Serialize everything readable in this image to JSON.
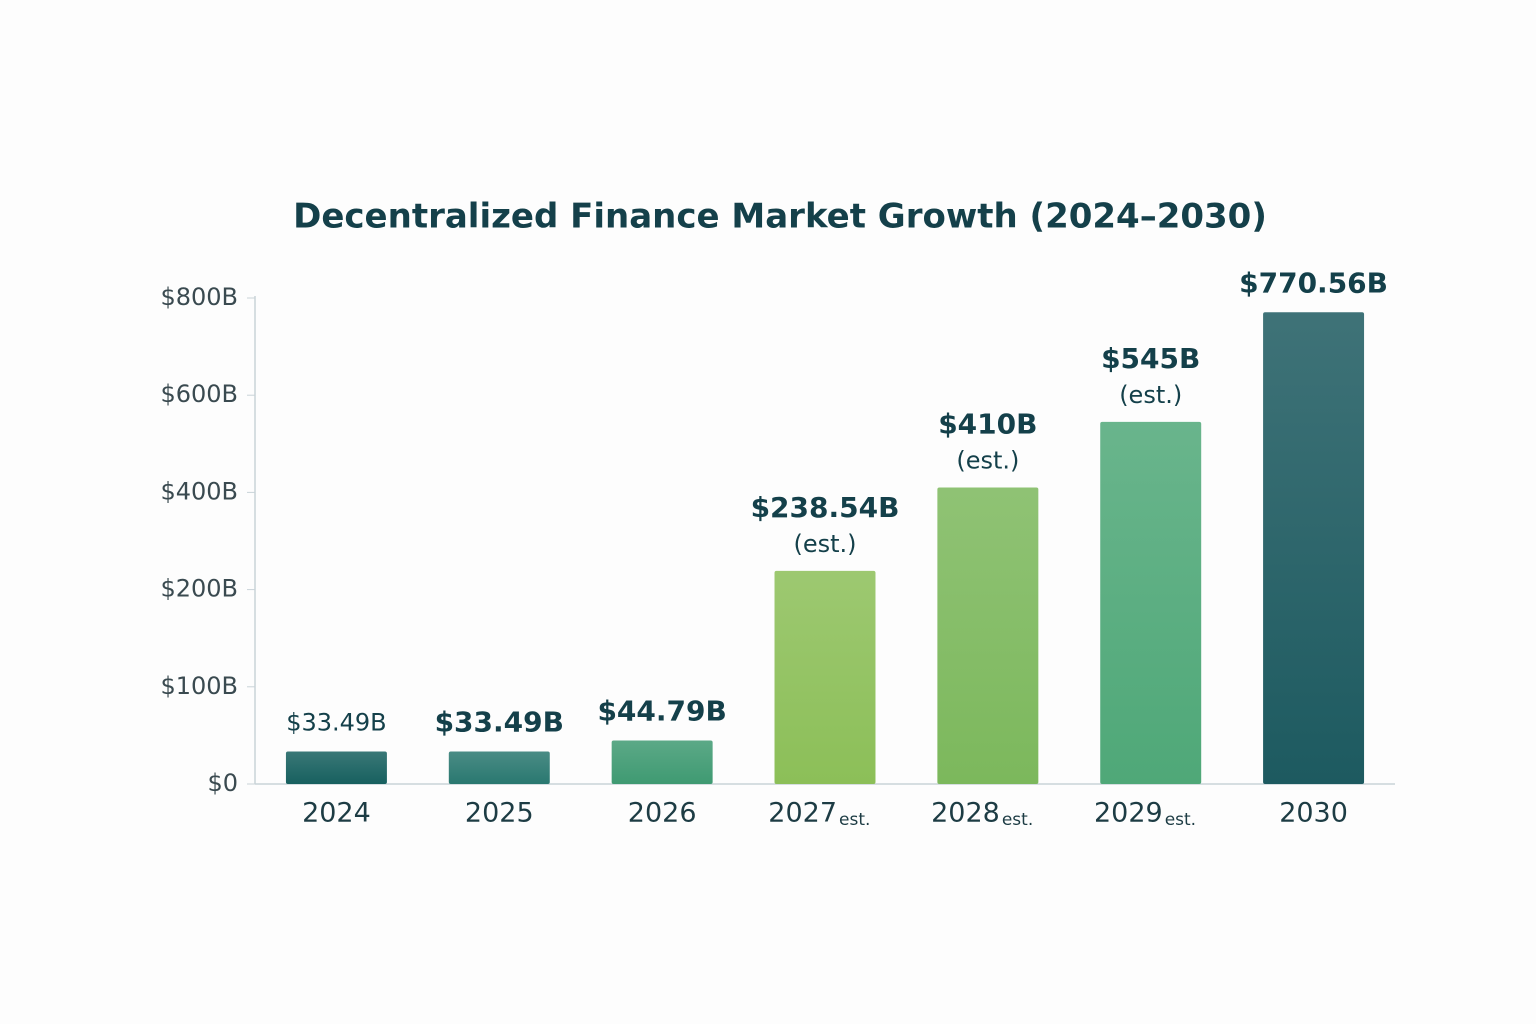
{
  "chart_data": {
    "type": "bar",
    "title": "Decentralized Finance Market Growth (2024–2030)",
    "categories": [
      "2024",
      "2025",
      "2026",
      "2027",
      "2028",
      "2029",
      "2030"
    ],
    "category_notes": [
      null,
      null,
      null,
      "est.",
      "est.",
      "est.",
      null
    ],
    "values": [
      33.49,
      33.49,
      44.79,
      238.54,
      410,
      545,
      770.56
    ],
    "value_labels": [
      "$33.49B",
      "$33.49B",
      "$44.79B",
      "$238.54B",
      "$410B",
      "$545B",
      "$770.56B"
    ],
    "value_notes": [
      null,
      null,
      null,
      "(est.)",
      "(est.)",
      "(est.)",
      null
    ],
    "colors": [
      "#17605f",
      "#2a7870",
      "#3f9a72",
      "#8cbf58",
      "#7cb85c",
      "#4fa878",
      "#1d5a60"
    ],
    "ylim": [
      0,
      800
    ],
    "yticks": [
      {
        "value": 0,
        "label": "$0"
      },
      {
        "value": 100,
        "label": "$100B"
      },
      {
        "value": 200,
        "label": "$200B"
      },
      {
        "value": 400,
        "label": "$400B"
      },
      {
        "value": 600,
        "label": "$600B"
      },
      {
        "value": 800,
        "label": "$800B"
      }
    ],
    "grid": false
  }
}
